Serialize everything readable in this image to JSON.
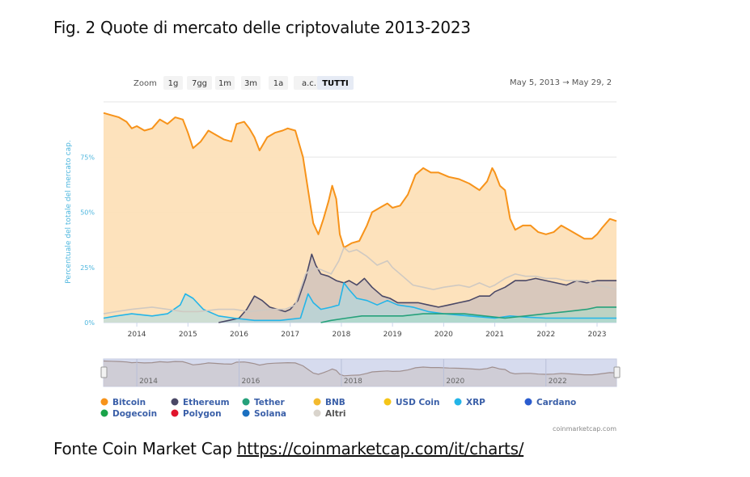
{
  "figure_title": "Fig. 2 Quote di mercato delle criptovalute 2013-2023",
  "source_prefix": "Fonte Coin Market Cap ",
  "source_link": "https://coinmarketcap.com/it/charts/",
  "toolbar": {
    "zoom_label": "Zoom",
    "buttons": [
      "1g",
      "7gg",
      "1m",
      "3m",
      "1a",
      "a.c.",
      "TUTTI"
    ],
    "active": "TUTTI",
    "date_from": "May 5, 2013",
    "arrow": "→",
    "date_to": "May 29, 2"
  },
  "watermark": "coinmarketcap.com",
  "colors": {
    "Bitcoin": "#f7931a",
    "Ethereum": "#4a4866",
    "Tether": "#26a17b",
    "BNB": "#f3ba2f",
    "USD Coin": "#f5c518",
    "XRP": "#23b5e8",
    "Cardano": "#2a5ccf",
    "Dogecoin": "#1aa34a",
    "Polygon": "#e0142c",
    "Solana": "#1a6fc0",
    "Altri": "#d9d4cc"
  },
  "chart_data": {
    "type": "area",
    "ylabel": "Percentuale del totale del mercato cap.",
    "ylim": [
      0,
      100
    ],
    "y_ticks": [
      "0%",
      "25%",
      "50%",
      "75%"
    ],
    "x_ticks": [
      "2014",
      "2015",
      "2016",
      "2017",
      "2018",
      "2019",
      "2020",
      "2021",
      "2022",
      "2023"
    ],
    "navigator_ticks": [
      "2014",
      "2016",
      "2018",
      "2020",
      "2022"
    ],
    "legend_placement": "bottom",
    "series": [
      {
        "name": "Bitcoin",
        "points": [
          [
            2013.35,
            95
          ],
          [
            2013.5,
            94
          ],
          [
            2013.65,
            93
          ],
          [
            2013.8,
            91
          ],
          [
            2013.9,
            88
          ],
          [
            2014.0,
            89
          ],
          [
            2014.15,
            87
          ],
          [
            2014.3,
            88
          ],
          [
            2014.45,
            92
          ],
          [
            2014.6,
            90
          ],
          [
            2014.75,
            93
          ],
          [
            2014.9,
            92
          ],
          [
            2015.0,
            86
          ],
          [
            2015.1,
            79
          ],
          [
            2015.25,
            82
          ],
          [
            2015.4,
            87
          ],
          [
            2015.55,
            85
          ],
          [
            2015.7,
            83
          ],
          [
            2015.85,
            82
          ],
          [
            2015.95,
            90
          ],
          [
            2016.1,
            91
          ],
          [
            2016.2,
            88
          ],
          [
            2016.3,
            84
          ],
          [
            2016.4,
            78
          ],
          [
            2016.55,
            84
          ],
          [
            2016.7,
            86
          ],
          [
            2016.85,
            87
          ],
          [
            2016.95,
            88
          ],
          [
            2017.1,
            87
          ],
          [
            2017.25,
            75
          ],
          [
            2017.35,
            60
          ],
          [
            2017.45,
            45
          ],
          [
            2017.55,
            40
          ],
          [
            2017.65,
            47
          ],
          [
            2017.75,
            55
          ],
          [
            2017.82,
            62
          ],
          [
            2017.9,
            56
          ],
          [
            2017.97,
            40
          ],
          [
            2018.05,
            34
          ],
          [
            2018.2,
            36
          ],
          [
            2018.35,
            37
          ],
          [
            2018.5,
            44
          ],
          [
            2018.6,
            50
          ],
          [
            2018.75,
            52
          ],
          [
            2018.9,
            54
          ],
          [
            2019.0,
            52
          ],
          [
            2019.15,
            53
          ],
          [
            2019.3,
            58
          ],
          [
            2019.45,
            67
          ],
          [
            2019.6,
            70
          ],
          [
            2019.75,
            68
          ],
          [
            2019.9,
            68
          ],
          [
            2020.1,
            66
          ],
          [
            2020.3,
            65
          ],
          [
            2020.5,
            63
          ],
          [
            2020.7,
            60
          ],
          [
            2020.85,
            64
          ],
          [
            2020.95,
            70
          ],
          [
            2021.0,
            68
          ],
          [
            2021.1,
            62
          ],
          [
            2021.2,
            60
          ],
          [
            2021.3,
            47
          ],
          [
            2021.4,
            42
          ],
          [
            2021.55,
            44
          ],
          [
            2021.7,
            44
          ],
          [
            2021.85,
            41
          ],
          [
            2022.0,
            40
          ],
          [
            2022.15,
            41
          ],
          [
            2022.3,
            44
          ],
          [
            2022.45,
            42
          ],
          [
            2022.6,
            40
          ],
          [
            2022.75,
            38
          ],
          [
            2022.9,
            38
          ],
          [
            2023.0,
            40
          ],
          [
            2023.1,
            43
          ],
          [
            2023.25,
            47
          ],
          [
            2023.38,
            46
          ]
        ]
      },
      {
        "name": "Ethereum",
        "points": [
          [
            2015.6,
            0
          ],
          [
            2015.8,
            1
          ],
          [
            2016.0,
            2
          ],
          [
            2016.15,
            6
          ],
          [
            2016.3,
            12
          ],
          [
            2016.45,
            10
          ],
          [
            2016.6,
            7
          ],
          [
            2016.75,
            6
          ],
          [
            2016.9,
            5
          ],
          [
            2017.0,
            6
          ],
          [
            2017.15,
            10
          ],
          [
            2017.3,
            20
          ],
          [
            2017.42,
            31
          ],
          [
            2017.5,
            26
          ],
          [
            2017.6,
            22
          ],
          [
            2017.75,
            21
          ],
          [
            2017.9,
            19
          ],
          [
            2018.05,
            18
          ],
          [
            2018.15,
            19
          ],
          [
            2018.3,
            17
          ],
          [
            2018.45,
            20
          ],
          [
            2018.6,
            16
          ],
          [
            2018.8,
            12
          ],
          [
            2018.95,
            11
          ],
          [
            2019.1,
            9
          ],
          [
            2019.3,
            9
          ],
          [
            2019.5,
            9
          ],
          [
            2019.7,
            8
          ],
          [
            2019.9,
            7
          ],
          [
            2020.1,
            8
          ],
          [
            2020.3,
            9
          ],
          [
            2020.5,
            10
          ],
          [
            2020.7,
            12
          ],
          [
            2020.9,
            12
          ],
          [
            2021.0,
            14
          ],
          [
            2021.2,
            16
          ],
          [
            2021.4,
            19
          ],
          [
            2021.6,
            19
          ],
          [
            2021.8,
            20
          ],
          [
            2022.0,
            19
          ],
          [
            2022.2,
            18
          ],
          [
            2022.4,
            17
          ],
          [
            2022.6,
            19
          ],
          [
            2022.8,
            18
          ],
          [
            2023.0,
            19
          ],
          [
            2023.2,
            19
          ],
          [
            2023.38,
            19
          ]
        ]
      },
      {
        "name": "XRP",
        "points": [
          [
            2013.35,
            2
          ],
          [
            2013.6,
            3
          ],
          [
            2013.9,
            4
          ],
          [
            2014.3,
            3
          ],
          [
            2014.6,
            4
          ],
          [
            2014.85,
            8
          ],
          [
            2014.95,
            13
          ],
          [
            2015.1,
            11
          ],
          [
            2015.3,
            6
          ],
          [
            2015.6,
            3
          ],
          [
            2015.9,
            2
          ],
          [
            2016.3,
            1
          ],
          [
            2016.8,
            1
          ],
          [
            2017.2,
            2
          ],
          [
            2017.35,
            13
          ],
          [
            2017.45,
            9
          ],
          [
            2017.6,
            6
          ],
          [
            2017.8,
            7
          ],
          [
            2017.95,
            8
          ],
          [
            2018.05,
            18
          ],
          [
            2018.15,
            15
          ],
          [
            2018.3,
            11
          ],
          [
            2018.5,
            10
          ],
          [
            2018.7,
            8
          ],
          [
            2018.9,
            10
          ],
          [
            2019.1,
            8
          ],
          [
            2019.4,
            7
          ],
          [
            2019.7,
            5
          ],
          [
            2020.0,
            4
          ],
          [
            2020.5,
            3
          ],
          [
            2021.0,
            2
          ],
          [
            2021.3,
            3
          ],
          [
            2021.6,
            2.5
          ],
          [
            2022.0,
            2
          ],
          [
            2022.5,
            2
          ],
          [
            2023.0,
            2
          ],
          [
            2023.38,
            2
          ]
        ]
      },
      {
        "name": "Tether",
        "points": [
          [
            2017.6,
            0
          ],
          [
            2017.8,
            1
          ],
          [
            2018.1,
            2
          ],
          [
            2018.4,
            3
          ],
          [
            2018.8,
            3
          ],
          [
            2019.2,
            3
          ],
          [
            2019.6,
            4
          ],
          [
            2020.0,
            4
          ],
          [
            2020.4,
            4
          ],
          [
            2020.8,
            3
          ],
          [
            2021.2,
            2
          ],
          [
            2021.6,
            3
          ],
          [
            2022.0,
            4
          ],
          [
            2022.4,
            5
          ],
          [
            2022.8,
            6
          ],
          [
            2023.0,
            7
          ],
          [
            2023.38,
            7
          ]
        ]
      },
      {
        "name": "Altri",
        "points": [
          [
            2013.35,
            4
          ],
          [
            2013.6,
            5
          ],
          [
            2013.9,
            6
          ],
          [
            2014.3,
            7
          ],
          [
            2014.6,
            6
          ],
          [
            2014.9,
            5
          ],
          [
            2015.2,
            5
          ],
          [
            2015.6,
            6
          ],
          [
            2015.9,
            6
          ],
          [
            2016.2,
            5
          ],
          [
            2016.6,
            6
          ],
          [
            2016.9,
            6
          ],
          [
            2017.1,
            8
          ],
          [
            2017.3,
            22
          ],
          [
            2017.45,
            25
          ],
          [
            2017.6,
            24
          ],
          [
            2017.8,
            22
          ],
          [
            2017.95,
            28
          ],
          [
            2018.05,
            34
          ],
          [
            2018.15,
            32
          ],
          [
            2018.3,
            33
          ],
          [
            2018.5,
            30
          ],
          [
            2018.7,
            26
          ],
          [
            2018.9,
            28
          ],
          [
            2019.0,
            25
          ],
          [
            2019.2,
            21
          ],
          [
            2019.4,
            17
          ],
          [
            2019.6,
            16
          ],
          [
            2019.8,
            15
          ],
          [
            2020.0,
            16
          ],
          [
            2020.3,
            17
          ],
          [
            2020.5,
            16
          ],
          [
            2020.7,
            18
          ],
          [
            2020.9,
            16
          ],
          [
            2021.0,
            17
          ],
          [
            2021.2,
            20
          ],
          [
            2021.4,
            22
          ],
          [
            2021.6,
            21
          ],
          [
            2021.8,
            21
          ],
          [
            2022.0,
            20
          ],
          [
            2022.2,
            20
          ],
          [
            2022.4,
            19
          ],
          [
            2022.6,
            19
          ],
          [
            2022.8,
            19
          ],
          [
            2023.0,
            17
          ],
          [
            2023.2,
            16
          ],
          [
            2023.38,
            15
          ]
        ]
      }
    ]
  },
  "legend": [
    [
      "Bitcoin",
      "Ethereum",
      "Tether",
      "BNB",
      "USD Coin",
      "XRP",
      "Cardano"
    ],
    [
      "Dogecoin",
      "Polygon",
      "Solana",
      "Altri"
    ]
  ]
}
